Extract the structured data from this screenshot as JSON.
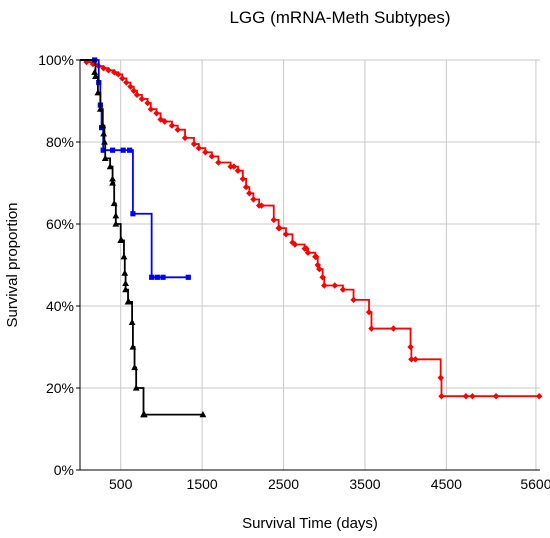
{
  "chart_data": {
    "type": "line",
    "title": "LGG (mRNA-Meth Subtypes)",
    "xlabel": "Survival Time (days)",
    "ylabel": "Survival proportion",
    "xlim": [
      0,
      5650
    ],
    "ylim": [
      0,
      1
    ],
    "x_ticks": [
      500,
      1500,
      2500,
      3500,
      4500,
      5600
    ],
    "x_tick_labels": [
      "500",
      "1500",
      "2500",
      "3500",
      "4500",
      "5600"
    ],
    "y_ticks": [
      0,
      0.2,
      0.4,
      0.6,
      0.8,
      1.0
    ],
    "y_tick_labels": [
      "0%",
      "20%",
      "40%",
      "60%",
      "80%",
      "100%"
    ],
    "grid": true,
    "series": [
      {
        "color": "#ff0000",
        "marker": "diamond",
        "steps": [
          [
            0,
            1.0
          ],
          [
            80,
            0.995
          ],
          [
            160,
            0.99
          ],
          [
            230,
            0.985
          ],
          [
            290,
            0.98
          ],
          [
            350,
            0.975
          ],
          [
            420,
            0.97
          ],
          [
            470,
            0.965
          ],
          [
            520,
            0.955
          ],
          [
            570,
            0.945
          ],
          [
            620,
            0.935
          ],
          [
            660,
            0.925
          ],
          [
            700,
            0.915
          ],
          [
            760,
            0.905
          ],
          [
            830,
            0.895
          ],
          [
            870,
            0.88
          ],
          [
            940,
            0.87
          ],
          [
            990,
            0.855
          ],
          [
            1040,
            0.85
          ],
          [
            1130,
            0.84
          ],
          [
            1200,
            0.83
          ],
          [
            1290,
            0.81
          ],
          [
            1400,
            0.795
          ],
          [
            1460,
            0.785
          ],
          [
            1540,
            0.775
          ],
          [
            1620,
            0.765
          ],
          [
            1700,
            0.75
          ],
          [
            1850,
            0.74
          ],
          [
            1940,
            0.73
          ],
          [
            2000,
            0.71
          ],
          [
            2040,
            0.69
          ],
          [
            2080,
            0.675
          ],
          [
            2130,
            0.66
          ],
          [
            2200,
            0.645
          ],
          [
            2380,
            0.61
          ],
          [
            2440,
            0.59
          ],
          [
            2530,
            0.575
          ],
          [
            2610,
            0.555
          ],
          [
            2640,
            0.55
          ],
          [
            2760,
            0.54
          ],
          [
            2800,
            0.53
          ],
          [
            2890,
            0.52
          ],
          [
            2920,
            0.5
          ],
          [
            2940,
            0.49
          ],
          [
            2980,
            0.47
          ],
          [
            3000,
            0.45
          ],
          [
            3210,
            0.45
          ],
          [
            3230,
            0.44
          ],
          [
            3360,
            0.415
          ],
          [
            3500,
            0.415
          ],
          [
            3550,
            0.385
          ],
          [
            3580,
            0.345
          ],
          [
            3780,
            0.345
          ],
          [
            4050,
            0.345
          ],
          [
            4060,
            0.3
          ],
          [
            4070,
            0.27
          ],
          [
            4400,
            0.27
          ],
          [
            4430,
            0.225
          ],
          [
            4440,
            0.18
          ],
          [
            5650,
            0.18
          ]
        ],
        "censored": [
          [
            1890,
            0.74
          ],
          [
            2230,
            0.645
          ],
          [
            2450,
            0.59
          ],
          [
            2780,
            0.54
          ],
          [
            2900,
            0.52
          ],
          [
            3130,
            0.45
          ],
          [
            3850,
            0.345
          ],
          [
            4120,
            0.27
          ],
          [
            4740,
            0.18
          ],
          [
            4820,
            0.18
          ],
          [
            5110,
            0.18
          ],
          [
            5640,
            0.18
          ]
        ]
      },
      {
        "color": "#0000ff",
        "marker": "square",
        "steps": [
          [
            0,
            1.0
          ],
          [
            210,
            1.0
          ],
          [
            230,
            0.945
          ],
          [
            250,
            0.89
          ],
          [
            265,
            0.835
          ],
          [
            285,
            0.78
          ],
          [
            310,
            0.78
          ],
          [
            640,
            0.78
          ],
          [
            650,
            0.625
          ],
          [
            860,
            0.625
          ],
          [
            880,
            0.47
          ],
          [
            1330,
            0.47
          ]
        ],
        "censored": [
          [
            180,
            1.0
          ],
          [
            400,
            0.78
          ],
          [
            530,
            0.78
          ],
          [
            610,
            0.78
          ],
          [
            950,
            0.47
          ],
          [
            1020,
            0.47
          ],
          [
            1330,
            0.47
          ]
        ]
      },
      {
        "color": "#000000",
        "marker": "triangle",
        "steps": [
          [
            0,
            1.0
          ],
          [
            170,
            1.0
          ],
          [
            190,
            0.96
          ],
          [
            220,
            0.92
          ],
          [
            250,
            0.88
          ],
          [
            280,
            0.84
          ],
          [
            300,
            0.8
          ],
          [
            310,
            0.76
          ],
          [
            370,
            0.74
          ],
          [
            400,
            0.7
          ],
          [
            420,
            0.65
          ],
          [
            440,
            0.6
          ],
          [
            500,
            0.56
          ],
          [
            540,
            0.52
          ],
          [
            550,
            0.48
          ],
          [
            560,
            0.44
          ],
          [
            590,
            0.41
          ],
          [
            610,
            0.41
          ],
          [
            640,
            0.36
          ],
          [
            650,
            0.3
          ],
          [
            670,
            0.25
          ],
          [
            690,
            0.2
          ],
          [
            760,
            0.2
          ],
          [
            780,
            0.135
          ],
          [
            1510,
            0.135
          ]
        ],
        "censored": [
          [
            180,
            0.97
          ],
          [
            290,
            0.82
          ],
          [
            400,
            0.71
          ],
          [
            440,
            0.62
          ],
          [
            510,
            0.56
          ],
          [
            560,
            0.455
          ],
          [
            600,
            0.41
          ],
          [
            790,
            0.135
          ],
          [
            1510,
            0.135
          ]
        ]
      }
    ]
  }
}
